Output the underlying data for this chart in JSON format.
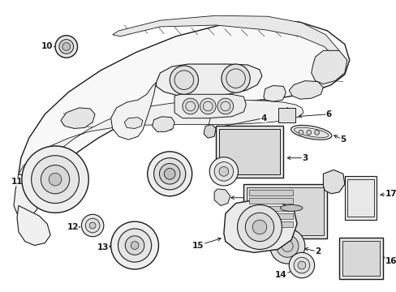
{
  "title": "",
  "bg_color": "#ffffff",
  "line_color": "#1a1a1a",
  "label_color": "#000000",
  "figsize": [
    4.89,
    3.6
  ],
  "dpi": 100
}
